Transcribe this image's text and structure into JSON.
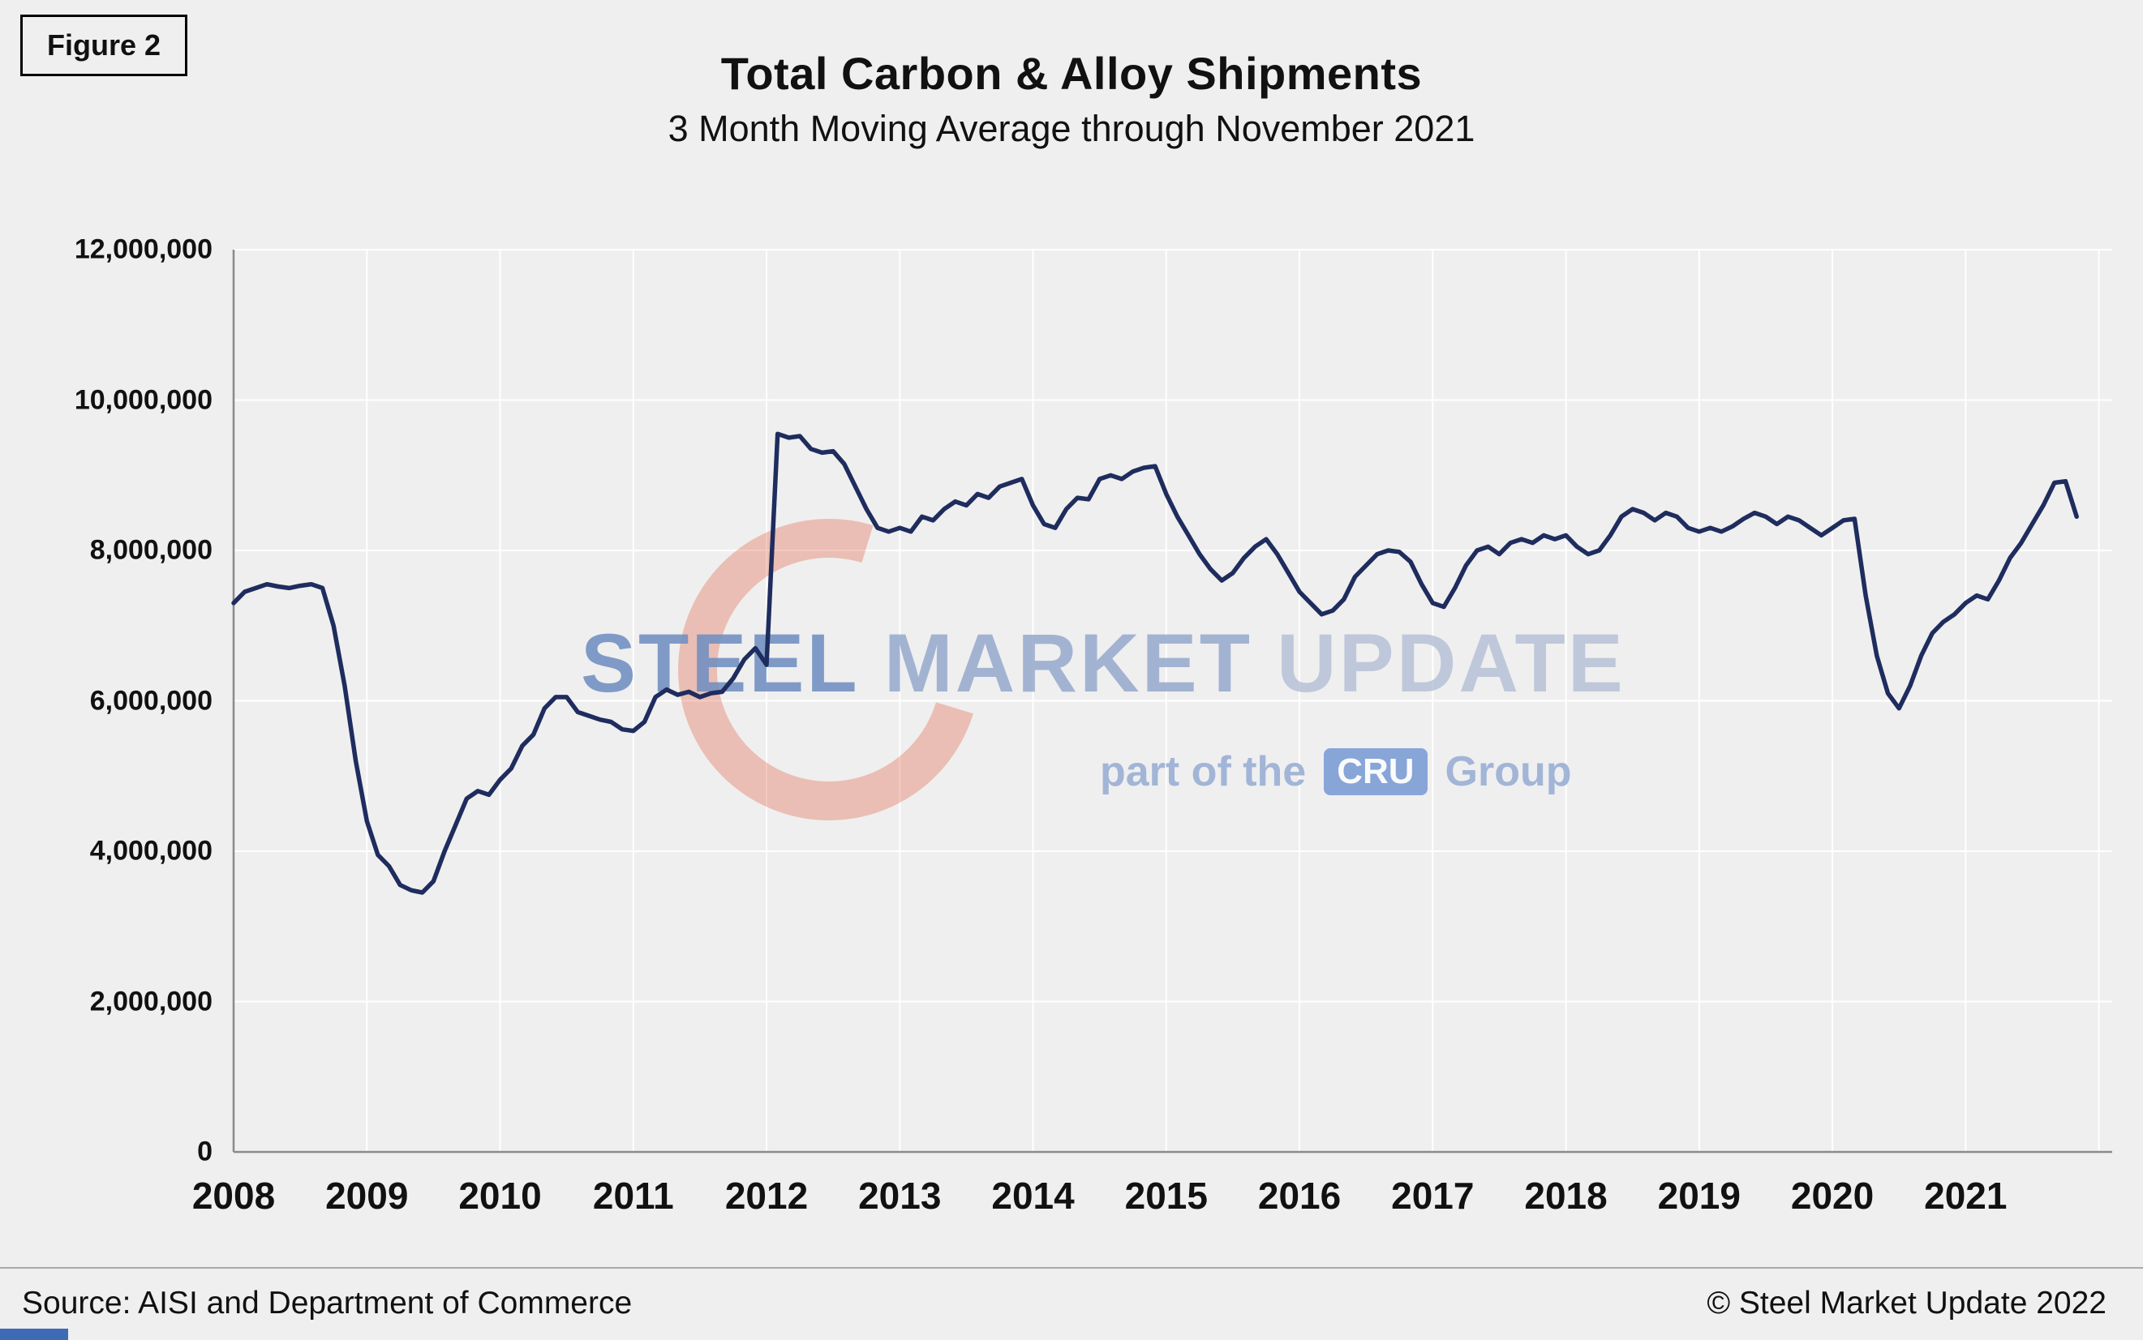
{
  "figure_label": "Figure 2",
  "header": {
    "title": "Total Carbon & Alloy Shipments",
    "subtitle": "3 Month Moving Average through November 2021"
  },
  "watermark": {
    "steel": "STEEL",
    "market": "MARKET",
    "update": "UPDATE",
    "part_of_the": "part of the",
    "cru": "CRU",
    "group": "Group"
  },
  "footer": {
    "source": "Source: AISI and Department of Commerce",
    "copyright": "© Steel Market Update 2022"
  },
  "colors": {
    "line_navy": "#1F2C5E",
    "crescent_red": "#E0583A",
    "accent_blue": "#3f6ab5",
    "background": "#efefef",
    "gridline": "#ffffff"
  },
  "chart_data": {
    "type": "line",
    "title": "Total Carbon & Alloy Shipments",
    "subtitle": "3 Month Moving Average through November 2021",
    "grid": true,
    "legend_position": "none",
    "x_start_year": 2008,
    "points_per_year": 12,
    "last_point_label": "November 2021",
    "xlim": [
      2008,
      2022.1
    ],
    "ylim": [
      0,
      12000000
    ],
    "x_ticks": [
      2008,
      2009,
      2010,
      2011,
      2012,
      2013,
      2014,
      2015,
      2016,
      2017,
      2018,
      2019,
      2020,
      2021
    ],
    "x_tick_labels": [
      "2008",
      "2009",
      "2010",
      "2011",
      "2012",
      "2013",
      "2014",
      "2015",
      "2016",
      "2017",
      "2018",
      "2019",
      "2020",
      "2021"
    ],
    "x_gridlines": [
      2008,
      2009,
      2010,
      2011,
      2012,
      2013,
      2014,
      2015,
      2016,
      2017,
      2018,
      2019,
      2020,
      2021,
      2022
    ],
    "y_ticks": [
      0,
      2000000,
      4000000,
      6000000,
      8000000,
      10000000,
      12000000
    ],
    "y_tick_labels": [
      "0",
      "2,000,000",
      "4,000,000",
      "6,000,000",
      "8,000,000",
      "10,000,000",
      "12,000,000"
    ],
    "series": [
      {
        "name": "Total Carbon & Alloy Shipments (3 Month Moving Average)",
        "color": "#1F2C5E",
        "monthly_values": [
          7300000,
          7450000,
          7500000,
          7550000,
          7520000,
          7500000,
          7530000,
          7550000,
          7500000,
          7000000,
          6200000,
          5200000,
          4400000,
          3950000,
          3800000,
          3550000,
          3480000,
          3450000,
          3600000,
          4000000,
          4350000,
          4700000,
          4800000,
          4750000,
          4950000,
          5100000,
          5400000,
          5550000,
          5900000,
          6050000,
          6050000,
          5850000,
          5800000,
          5750000,
          5720000,
          5620000,
          5600000,
          5720000,
          6050000,
          6150000,
          6080000,
          6120000,
          6050000,
          6100000,
          6120000,
          6300000,
          6550000,
          6700000,
          6480000,
          9550000,
          9500000,
          9520000,
          9350000,
          9300000,
          9320000,
          9150000,
          8850000,
          8550000,
          8300000,
          8250000,
          8300000,
          8250000,
          8450000,
          8400000,
          8550000,
          8650000,
          8600000,
          8750000,
          8700000,
          8850000,
          8900000,
          8950000,
          8600000,
          8350000,
          8300000,
          8550000,
          8700000,
          8680000,
          8950000,
          9000000,
          8950000,
          9050000,
          9100000,
          9120000,
          8750000,
          8450000,
          8200000,
          7950000,
          7750000,
          7600000,
          7700000,
          7900000,
          8050000,
          8150000,
          7950000,
          7700000,
          7450000,
          7300000,
          7150000,
          7200000,
          7350000,
          7650000,
          7800000,
          7950000,
          8000000,
          7980000,
          7850000,
          7550000,
          7300000,
          7250000,
          7500000,
          7800000,
          8000000,
          8050000,
          7950000,
          8100000,
          8150000,
          8100000,
          8200000,
          8150000,
          8200000,
          8050000,
          7950000,
          8000000,
          8200000,
          8450000,
          8550000,
          8500000,
          8400000,
          8500000,
          8450000,
          8300000,
          8250000,
          8300000,
          8250000,
          8320000,
          8420000,
          8500000,
          8450000,
          8350000,
          8450000,
          8400000,
          8300000,
          8200000,
          8300000,
          8400000,
          8420000,
          7400000,
          6600000,
          6100000,
          5900000,
          6200000,
          6600000,
          6900000,
          7050000,
          7150000,
          7300000,
          7400000,
          7350000,
          7600000,
          7900000,
          8100000,
          8350000,
          8600000,
          8900000,
          8920000,
          8450000
        ]
      }
    ]
  }
}
